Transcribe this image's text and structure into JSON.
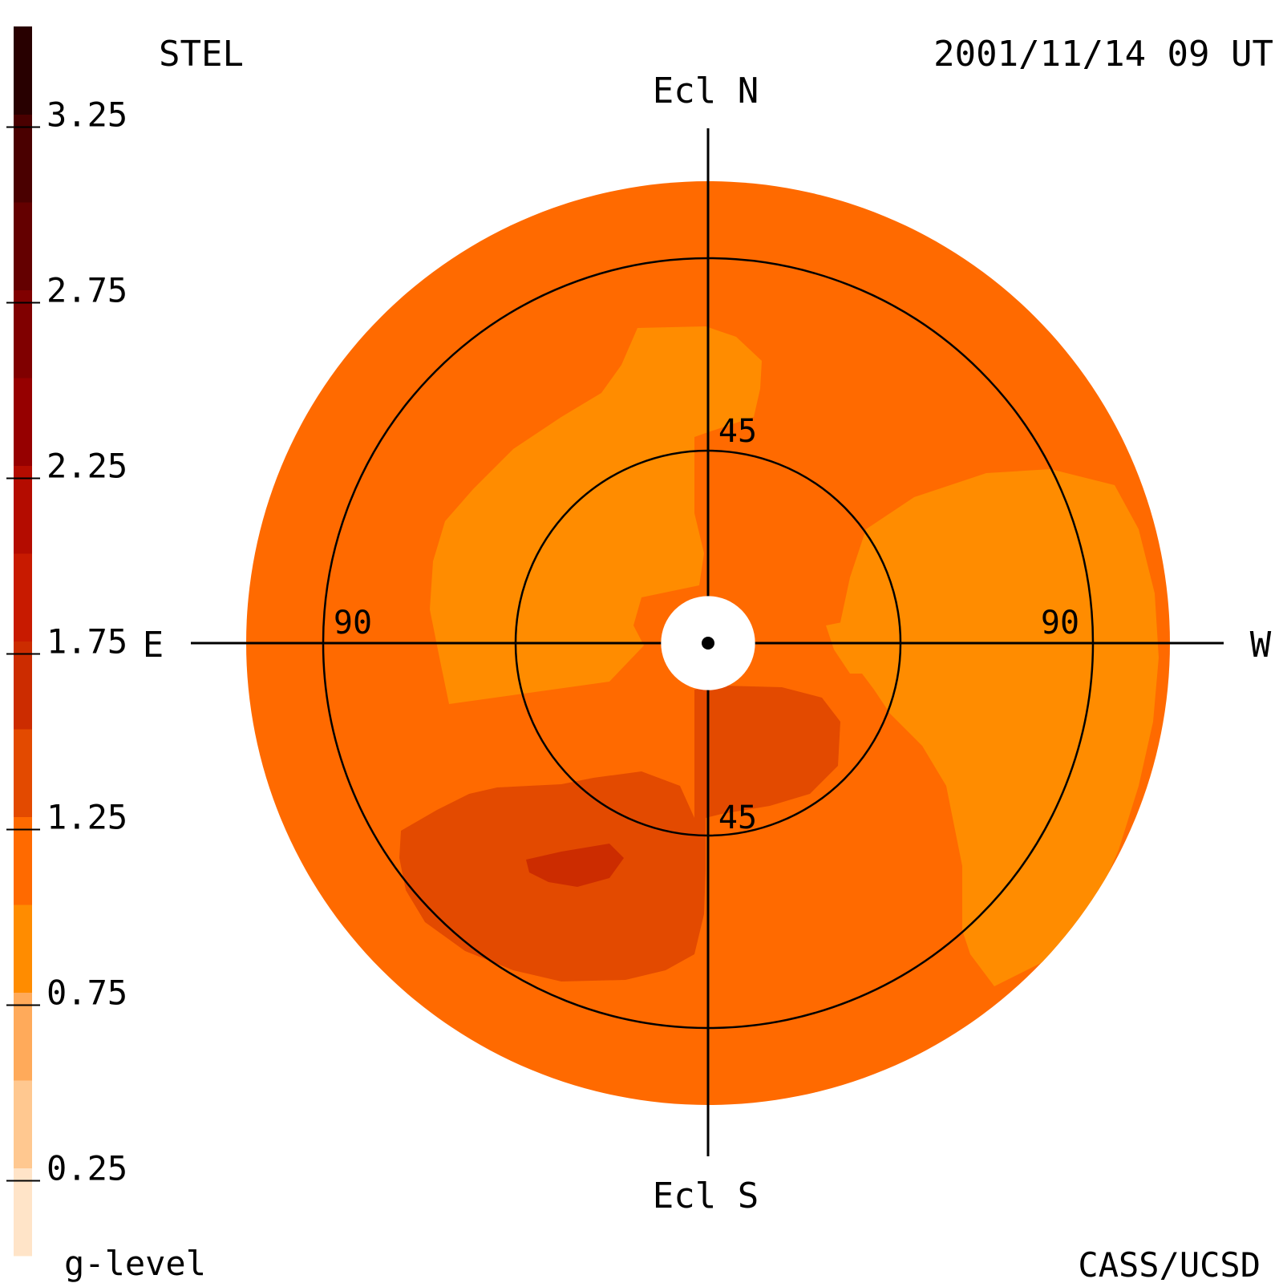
{
  "chart_data": {
    "type": "heatmap",
    "projection": "sky-map",
    "instrument_label": "STEL",
    "timestamp": "2001/11/14 09 UT",
    "credit": "CASS/UCSD",
    "colorbar": {
      "label": "g-level",
      "tick_labels": [
        "3.25",
        "2.75",
        "2.25",
        "1.75",
        "1.25",
        "0.75",
        "0.25"
      ],
      "tick_values": [
        3.25,
        2.75,
        2.25,
        1.75,
        1.25,
        0.75,
        0.25
      ],
      "range": [
        0,
        3.5
      ],
      "band_step": 0.25,
      "band_colors": [
        "#ffe4c8",
        "#ffc890",
        "#ffaa5a",
        "#ff8c00",
        "#ff6a00",
        "#e34a00",
        "#cc2c00",
        "#c81a00",
        "#b40c00",
        "#960000",
        "#800000",
        "#640000",
        "#4a0000",
        "#280000"
      ]
    },
    "directions": {
      "north": "Ecl N",
      "south": "Ecl S",
      "east": "E",
      "west": "W"
    },
    "elongation_rings": [
      {
        "value": 45,
        "labels": [
          "45",
          "45"
        ]
      },
      {
        "value": 90,
        "labels": [
          "90",
          "90"
        ]
      }
    ],
    "max_elongation": 108,
    "sun_mask_elongation": 11,
    "background_level": 1.1,
    "regions": [
      {
        "name": "north-arm-low",
        "level": 0.85
      },
      {
        "name": "west-region-low",
        "level": 0.85
      },
      {
        "name": "southwest-lobe-low",
        "level": 0.85
      },
      {
        "name": "south-center-high",
        "level": 1.4
      },
      {
        "name": "southeast-lobe-high",
        "level": 1.4
      },
      {
        "name": "southeast-peak",
        "level": 1.7
      }
    ]
  }
}
